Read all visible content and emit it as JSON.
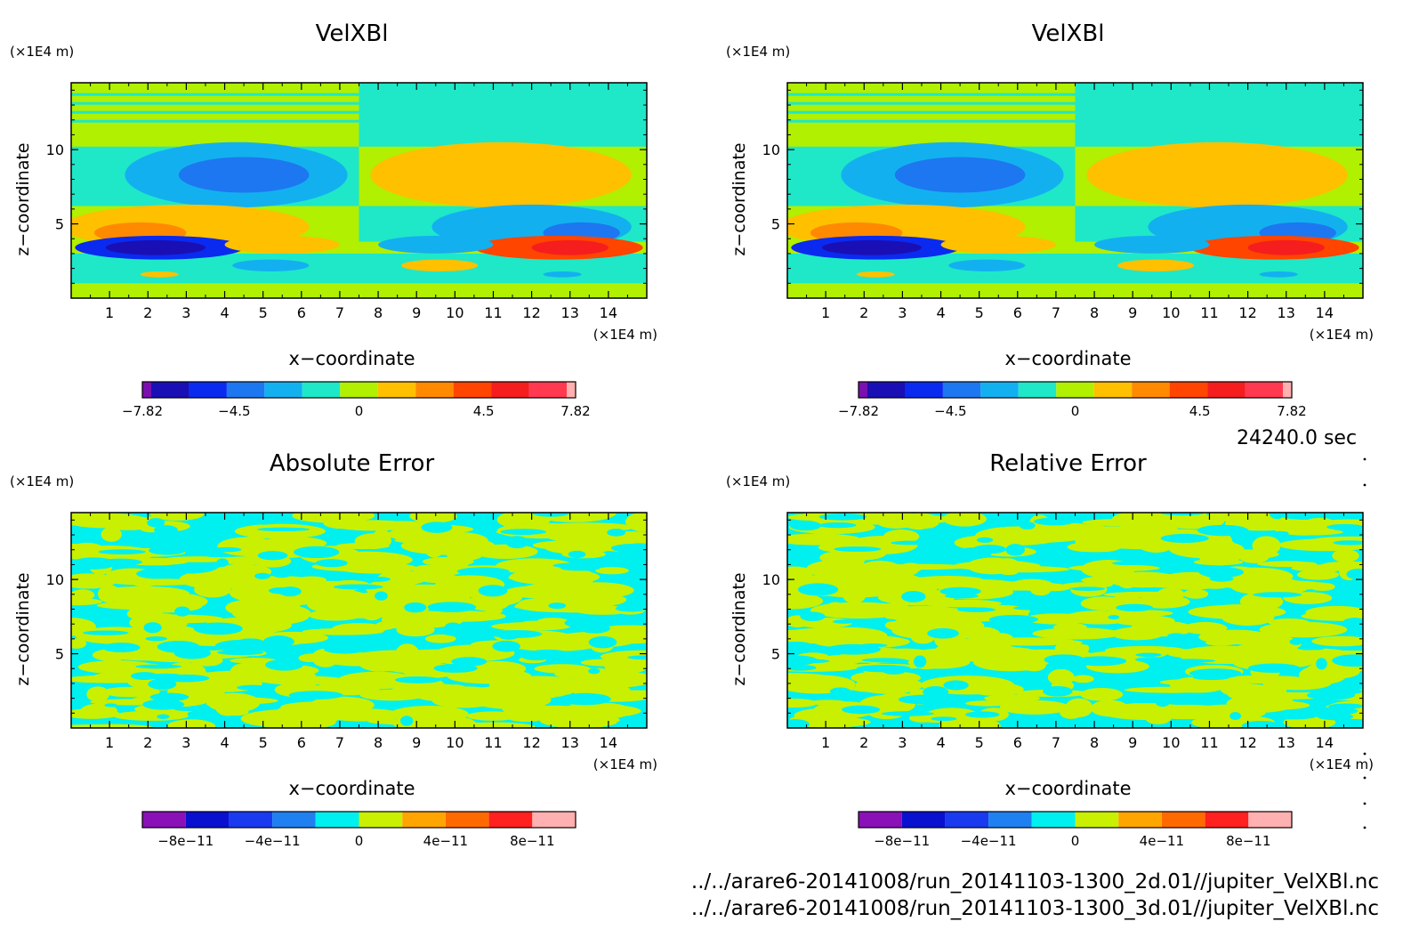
{
  "time_label": "24240.0 sec",
  "files": [
    "../../arare6-20141008/run_20141103-1300_2d.01//jupiter_VelXBl.nc",
    "../../arare6-20141008/run_20141103-1300_3d.01//jupiter_VelXBl.nc"
  ],
  "chart_data": [
    {
      "type": "heatmap",
      "title": "VelXBl",
      "xlabel": "x−coordinate",
      "ylabel": "z−coordinate",
      "x_unit": "(×1E4 m)",
      "y_unit": "(×1E4 m)",
      "xlim": [
        0,
        15
      ],
      "ylim": [
        0,
        14.5
      ],
      "x_ticks": [
        "1",
        "2",
        "3",
        "4",
        "5",
        "6",
        "7",
        "8",
        "9",
        "10",
        "11",
        "12",
        "13",
        "14"
      ],
      "y_ticks": [
        "5",
        "10"
      ],
      "colorbar": {
        "colors": [
          "#7a10b0",
          "#1a0fb4",
          "#0a2af0",
          "#1d77f0",
          "#13b0f0",
          "#1ee8c8",
          "#b0f000",
          "#ffc000",
          "#ff8a00",
          "#ff4500",
          "#f51d1d",
          "#ff3a50",
          "#ffb0b0"
        ],
        "tick_labels": [
          "−7.82",
          "−4.5",
          "0",
          "4.5",
          "7.82"
        ],
        "range": [
          -7.82,
          7.82
        ]
      }
    },
    {
      "type": "heatmap",
      "title": "VelXBl",
      "xlabel": "x−coordinate",
      "ylabel": "z−coordinate",
      "x_unit": "(×1E4 m)",
      "y_unit": "(×1E4 m)",
      "xlim": [
        0,
        15
      ],
      "ylim": [
        0,
        14.5
      ],
      "x_ticks": [
        "1",
        "2",
        "3",
        "4",
        "5",
        "6",
        "7",
        "8",
        "9",
        "10",
        "11",
        "12",
        "13",
        "14"
      ],
      "y_ticks": [
        "5",
        "10"
      ],
      "colorbar": {
        "colors": [
          "#7a10b0",
          "#1a0fb4",
          "#0a2af0",
          "#1d77f0",
          "#13b0f0",
          "#1ee8c8",
          "#b0f000",
          "#ffc000",
          "#ff8a00",
          "#ff4500",
          "#f51d1d",
          "#ff3a50",
          "#ffb0b0"
        ],
        "tick_labels": [
          "−7.82",
          "−4.5",
          "0",
          "4.5",
          "7.82"
        ],
        "range": [
          -7.82,
          7.82
        ]
      }
    },
    {
      "type": "heatmap",
      "title": "Absolute Error",
      "xlabel": "x−coordinate",
      "ylabel": "z−coordinate",
      "x_unit": "(×1E4 m)",
      "y_unit": "(×1E4 m)",
      "xlim": [
        0,
        15
      ],
      "ylim": [
        0,
        14.5
      ],
      "x_ticks": [
        "1",
        "2",
        "3",
        "4",
        "5",
        "6",
        "7",
        "8",
        "9",
        "10",
        "11",
        "12",
        "13",
        "14"
      ],
      "y_ticks": [
        "5",
        "10"
      ],
      "colorbar": {
        "colors": [
          "#8a10b8",
          "#0a10d0",
          "#1a3af0",
          "#2080f0",
          "#00f0f0",
          "#c8f000",
          "#ffa500",
          "#ff6a00",
          "#ff2020",
          "#ffb0b0"
        ],
        "tick_labels": [
          "−8e−11",
          "−4e−11",
          "0",
          "4e−11",
          "8e−11"
        ],
        "range": [
          -1e-10,
          1e-10
        ]
      }
    },
    {
      "type": "heatmap",
      "title": "Relative Error",
      "xlabel": "x−coordinate",
      "ylabel": "z−coordinate",
      "x_unit": "(×1E4 m)",
      "y_unit": "(×1E4 m)",
      "xlim": [
        0,
        15
      ],
      "ylim": [
        0,
        14.5
      ],
      "x_ticks": [
        "1",
        "2",
        "3",
        "4",
        "5",
        "6",
        "7",
        "8",
        "9",
        "10",
        "11",
        "12",
        "13",
        "14"
      ],
      "y_ticks": [
        "5",
        "10"
      ],
      "colorbar": {
        "colors": [
          "#8a10b8",
          "#0a10d0",
          "#1a3af0",
          "#2080f0",
          "#00f0f0",
          "#c8f000",
          "#ffa500",
          "#ff6a00",
          "#ff2020",
          "#ffb0b0"
        ],
        "tick_labels": [
          "−8e−11",
          "−4e−11",
          "0",
          "4e−11",
          "8e−11"
        ],
        "range": [
          -1e-10,
          1e-10
        ]
      }
    }
  ]
}
